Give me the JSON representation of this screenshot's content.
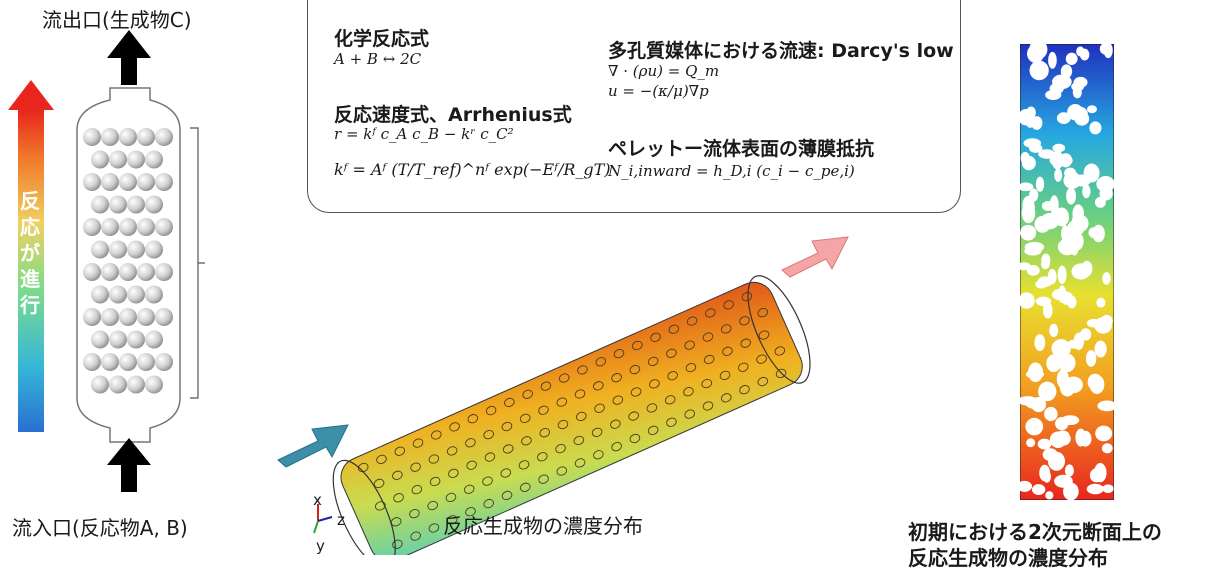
{
  "outlet_label": "流出口(生成物C)",
  "inlet_label": "流入口(反応物A, B)",
  "progress_label": "反応が進行",
  "equations": {
    "chem_heading": "化学反応式",
    "chem_eq": "A + B ↔ 2C",
    "rate_heading": "反応速度式、Arrhenius式",
    "rate_eq": "r = kᶠ c_A c_B − kʳ c_C²",
    "arrhenius_eq": "kᶠ = Aᶠ (T/T_ref)^nᶠ exp(−Eᶠ/R_gT)",
    "darcy_heading": "多孔質媒体における流速: Darcy's low",
    "darcy_eq1": "∇ · (ρu) = Q_m",
    "darcy_eq2": "u = −(κ/μ)∇p",
    "film_heading": "ペレットー流体表面の薄膜抵抗",
    "film_eq": "N_i,inward = h_D,i (c_i − c_pe,i)"
  },
  "axes": {
    "x": "x",
    "y": "y",
    "z": "z"
  },
  "caption_3d": "反応生成物の濃度分布",
  "caption_2d_line1": "初期における2次元断面上の",
  "caption_2d_line2": "反応生成物の濃度分布",
  "colors": {
    "arrow_red": "#e8261d",
    "arrow_blue": "#3a7fc0",
    "inlet_arrow": "#3b8fa8",
    "outlet_arrow": "#f08e8e"
  }
}
